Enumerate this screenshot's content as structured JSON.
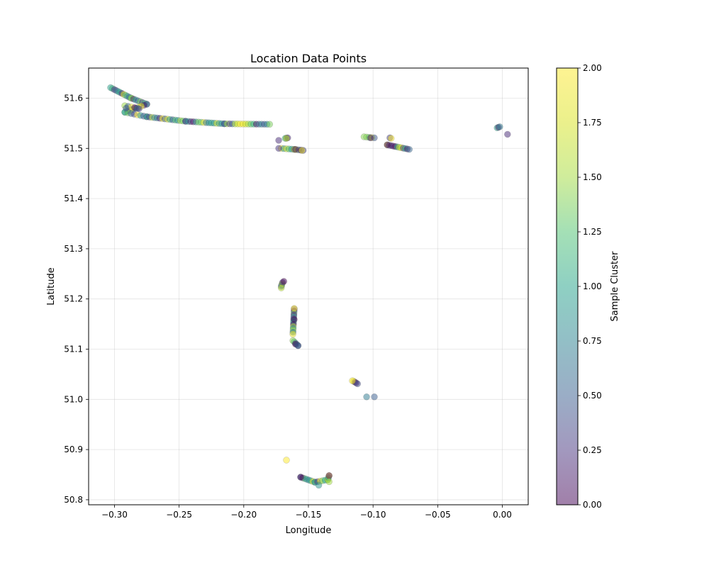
{
  "chart_data": {
    "type": "scatter",
    "title": "Location Data Points",
    "xlabel": "Longitude",
    "ylabel": "Latitude",
    "xlim": [
      -0.32,
      0.02
    ],
    "ylim": [
      50.79,
      51.66
    ],
    "xticks": [
      -0.3,
      -0.25,
      -0.2,
      -0.15,
      -0.1,
      -0.05,
      0.0
    ],
    "xtick_labels": [
      "−0.30",
      "−0.25",
      "−0.20",
      "−0.15",
      "−0.10",
      "−0.05",
      "0.00"
    ],
    "yticks": [
      50.8,
      50.9,
      51.0,
      51.1,
      51.2,
      51.3,
      51.4,
      51.5,
      51.6
    ],
    "ytick_labels": [
      "50.8",
      "50.9",
      "51.0",
      "51.1",
      "51.2",
      "51.3",
      "51.4",
      "51.5",
      "51.6"
    ],
    "grid": true,
    "colormap": "viridis",
    "alpha": 0.5,
    "colorbar": {
      "label": "Sample Cluster",
      "range": [
        0,
        2
      ],
      "ticks": [
        0,
        0.25,
        0.5,
        0.75,
        1.0,
        1.25,
        1.5,
        1.75,
        2.0
      ],
      "tick_labels": [
        "0.00",
        "0.25",
        "0.50",
        "0.75",
        "1.00",
        "1.25",
        "1.50",
        "1.75",
        "2.00"
      ]
    },
    "segments": [
      {
        "from": [
          -0.303,
          51.621
        ],
        "to": [
          -0.287,
          51.6
        ],
        "n": 12
      },
      {
        "from": [
          -0.287,
          51.6
        ],
        "to": [
          -0.275,
          51.588
        ],
        "n": 8
      },
      {
        "from": [
          -0.275,
          51.588
        ],
        "to": [
          -0.292,
          51.572
        ],
        "n": 9
      },
      {
        "from": [
          -0.292,
          51.572
        ],
        "to": [
          -0.275,
          51.563
        ],
        "n": 8
      },
      {
        "from": [
          -0.275,
          51.563
        ],
        "to": [
          -0.245,
          51.554
        ],
        "n": 16
      },
      {
        "from": [
          -0.245,
          51.554
        ],
        "to": [
          -0.215,
          51.549
        ],
        "n": 16
      },
      {
        "from": [
          -0.215,
          51.549
        ],
        "to": [
          -0.18,
          51.548
        ],
        "n": 18
      },
      {
        "from": [
          -0.292,
          51.585
        ],
        "to": [
          -0.282,
          51.58
        ],
        "n": 5
      },
      {
        "from": [
          -0.168,
          51.52
        ],
        "to": [
          -0.166,
          51.521
        ],
        "n": 3
      },
      {
        "from": [
          -0.171,
          51.5
        ],
        "to": [
          -0.161,
          51.498
        ],
        "n": 6
      },
      {
        "from": [
          -0.161,
          51.498
        ],
        "to": [
          -0.154,
          51.496
        ],
        "n": 5
      },
      {
        "from": [
          -0.107,
          51.523
        ],
        "to": [
          -0.099,
          51.521
        ],
        "n": 5
      },
      {
        "from": [
          -0.089,
          51.507
        ],
        "to": [
          -0.072,
          51.498
        ],
        "n": 12
      },
      {
        "from": [
          -0.004,
          51.541
        ],
        "to": [
          -0.002,
          51.543
        ],
        "n": 3
      },
      {
        "from": [
          -0.171,
          51.225
        ],
        "to": [
          -0.17,
          51.233
        ],
        "n": 4
      },
      {
        "from": [
          -0.161,
          51.18
        ],
        "to": [
          -0.162,
          51.13
        ],
        "n": 14
      },
      {
        "from": [
          -0.162,
          51.117
        ],
        "to": [
          -0.158,
          51.107
        ],
        "n": 5
      },
      {
        "from": [
          -0.115,
          51.036
        ],
        "to": [
          -0.112,
          51.031
        ],
        "n": 4
      },
      {
        "from": [
          -0.156,
          50.845
        ],
        "to": [
          -0.145,
          50.835
        ],
        "n": 8
      },
      {
        "from": [
          -0.145,
          50.835
        ],
        "to": [
          -0.135,
          50.84
        ],
        "n": 6
      },
      {
        "from": [
          -0.135,
          50.84
        ],
        "to": [
          -0.134,
          50.848
        ],
        "n": 3
      }
    ],
    "points": [
      {
        "x": -0.291,
        "y": 51.58,
        "c": 0.45
      },
      {
        "x": -0.281,
        "y": 51.579,
        "c": 0.3
      },
      {
        "x": -0.173,
        "y": 51.516,
        "c": 0.2
      },
      {
        "x": -0.173,
        "y": 51.5,
        "c": 0.25
      },
      {
        "x": -0.16,
        "y": 51.498,
        "c": 0.1
      },
      {
        "x": -0.155,
        "y": 51.496,
        "c": 1.9
      },
      {
        "x": -0.167,
        "y": 51.52,
        "c": 1.7
      },
      {
        "x": -0.087,
        "y": 51.521,
        "c": 0.3
      },
      {
        "x": -0.086,
        "y": 51.52,
        "c": 1.95
      },
      {
        "x": -0.102,
        "y": 51.521,
        "c": 0.1
      },
      {
        "x": -0.089,
        "y": 51.507,
        "c": 0.0
      },
      {
        "x": 0.004,
        "y": 51.528,
        "c": 0.2
      },
      {
        "x": -0.169,
        "y": 51.235,
        "c": 0.0
      },
      {
        "x": -0.171,
        "y": 51.222,
        "c": 1.6
      },
      {
        "x": -0.161,
        "y": 51.159,
        "c": 0.0
      },
      {
        "x": -0.161,
        "y": 51.181,
        "c": 2.0
      },
      {
        "x": -0.16,
        "y": 51.11,
        "c": 0.0
      },
      {
        "x": -0.158,
        "y": 51.107,
        "c": 0.6
      },
      {
        "x": -0.116,
        "y": 51.037,
        "c": 1.95
      },
      {
        "x": -0.105,
        "y": 51.005,
        "c": 0.7
      },
      {
        "x": -0.099,
        "y": 51.005,
        "c": 0.5
      },
      {
        "x": -0.167,
        "y": 50.879,
        "c": 2.0
      },
      {
        "x": -0.156,
        "y": 50.845,
        "c": 0.0
      },
      {
        "x": -0.142,
        "y": 50.829,
        "c": 0.9
      },
      {
        "x": -0.134,
        "y": 50.848,
        "c": 0.0
      },
      {
        "x": -0.134,
        "y": 50.836,
        "c": 1.5
      }
    ]
  }
}
